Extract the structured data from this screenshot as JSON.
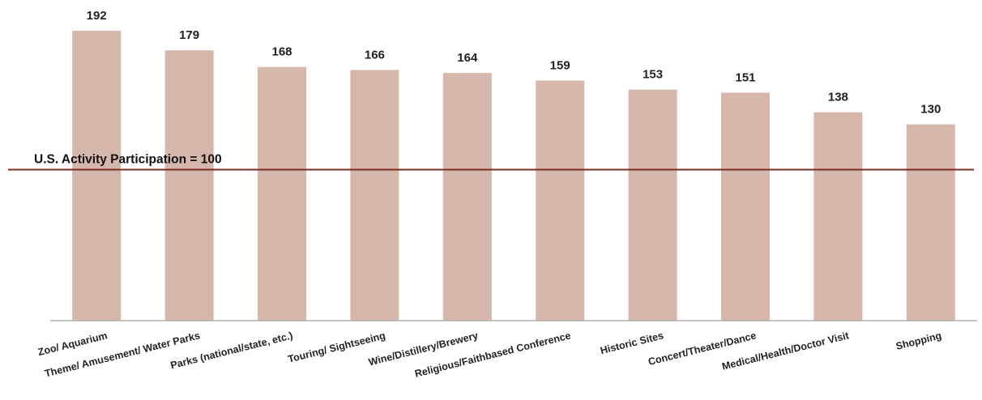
{
  "chart_data": {
    "type": "bar",
    "title": "",
    "xlabel": "",
    "ylabel": "",
    "categories": [
      "Zoo/ Aquarium",
      "Theme/ Amusement/ Water Parks",
      "Parks (national/state, etc.)",
      "Touring/ Sightseeing",
      "Wine/Distillery/Brewery",
      "Religious/Faithbased Conference",
      "Historic Sites",
      "Concert/Theater/Dance",
      "Medical/Health/Doctor Visit",
      "Shopping"
    ],
    "values": [
      192,
      179,
      168,
      166,
      164,
      159,
      153,
      151,
      138,
      130
    ],
    "ylim": [
      0,
      200
    ],
    "grid": false,
    "legend": "none",
    "reference_line": {
      "value": 100,
      "label": "U.S. Activity Participation = 100"
    },
    "colors": {
      "bar": "#d6b7ab",
      "reference_line": "#7a2e22",
      "axis": "#b0b0b0"
    }
  }
}
